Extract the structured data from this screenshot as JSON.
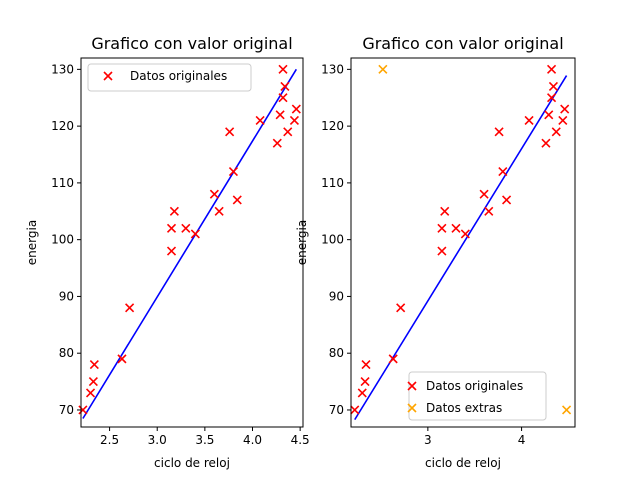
{
  "chart_data": [
    {
      "type": "scatter",
      "title": "Grafico con valor original",
      "xlabel": "ciclo de reloj",
      "ylabel": "energia",
      "xlim": [
        2.2,
        4.53
      ],
      "ylim": [
        67.0,
        132.0
      ],
      "xticks": [
        2.5,
        3.0,
        3.5,
        4.0,
        4.5
      ],
      "xtick_labels": [
        "2.5",
        "3.0",
        "3.5",
        "4.0",
        "4.5"
      ],
      "yticks": [
        70,
        80,
        90,
        100,
        110,
        120,
        130
      ],
      "ytick_labels": [
        "70",
        "80",
        "90",
        "100",
        "110",
        "120",
        "130"
      ],
      "grid": false,
      "legend_position": "top-left",
      "series": [
        {
          "name": "Datos originales",
          "kind": "scatter",
          "marker": "x",
          "color": "#ff0000",
          "points": [
            [
              2.22,
              70
            ],
            [
              2.3,
              73
            ],
            [
              2.33,
              75
            ],
            [
              2.34,
              78
            ],
            [
              2.63,
              79
            ],
            [
              2.71,
              88
            ],
            [
              3.15,
              98
            ],
            [
              3.15,
              102
            ],
            [
              3.18,
              105
            ],
            [
              3.3,
              102
            ],
            [
              3.4,
              101
            ],
            [
              3.6,
              108
            ],
            [
              3.65,
              105
            ],
            [
              3.76,
              119
            ],
            [
              3.8,
              112
            ],
            [
              3.84,
              107
            ],
            [
              4.08,
              121
            ],
            [
              4.26,
              117
            ],
            [
              4.29,
              122
            ],
            [
              4.32,
              125
            ],
            [
              4.32,
              130
            ],
            [
              4.34,
              127
            ],
            [
              4.37,
              119
            ],
            [
              4.44,
              121
            ],
            [
              4.46,
              123
            ]
          ]
        }
      ],
      "line": {
        "kind": "line",
        "color": "#0000ff",
        "x": [
          2.22,
          4.46
        ],
        "y": [
          68.5,
          130.0
        ]
      }
    },
    {
      "type": "scatter",
      "title": "Grafico con valor original",
      "xlabel": "ciclo de reloj",
      "ylabel": "energia",
      "xlim": [
        2.18,
        4.57
      ],
      "ylim": [
        67.0,
        132.0
      ],
      "xticks": [
        3,
        4
      ],
      "xtick_labels": [
        "3",
        "4"
      ],
      "yticks": [
        70,
        80,
        90,
        100,
        110,
        120,
        130
      ],
      "ytick_labels": [
        "70",
        "80",
        "90",
        "100",
        "110",
        "120",
        "130"
      ],
      "grid": false,
      "legend_position": "bottom-right",
      "series": [
        {
          "name": "Datos originales",
          "kind": "scatter",
          "marker": "x",
          "color": "#ff0000",
          "points": [
            [
              2.22,
              70
            ],
            [
              2.3,
              73
            ],
            [
              2.33,
              75
            ],
            [
              2.34,
              78
            ],
            [
              2.63,
              79
            ],
            [
              2.71,
              88
            ],
            [
              3.15,
              98
            ],
            [
              3.15,
              102
            ],
            [
              3.18,
              105
            ],
            [
              3.3,
              102
            ],
            [
              3.4,
              101
            ],
            [
              3.6,
              108
            ],
            [
              3.65,
              105
            ],
            [
              3.76,
              119
            ],
            [
              3.8,
              112
            ],
            [
              3.84,
              107
            ],
            [
              4.08,
              121
            ],
            [
              4.26,
              117
            ],
            [
              4.29,
              122
            ],
            [
              4.32,
              125
            ],
            [
              4.32,
              130
            ],
            [
              4.34,
              127
            ],
            [
              4.37,
              119
            ],
            [
              4.44,
              121
            ],
            [
              4.46,
              123
            ]
          ]
        },
        {
          "name": "Datos extras",
          "kind": "scatter",
          "marker": "x",
          "color": "#ffa500",
          "points": [
            [
              2.52,
              130
            ],
            [
              4.48,
              70
            ]
          ]
        }
      ],
      "line": {
        "kind": "line",
        "color": "#0000ff",
        "x": [
          2.22,
          4.48
        ],
        "y": [
          68.3,
          128.9
        ]
      }
    }
  ]
}
